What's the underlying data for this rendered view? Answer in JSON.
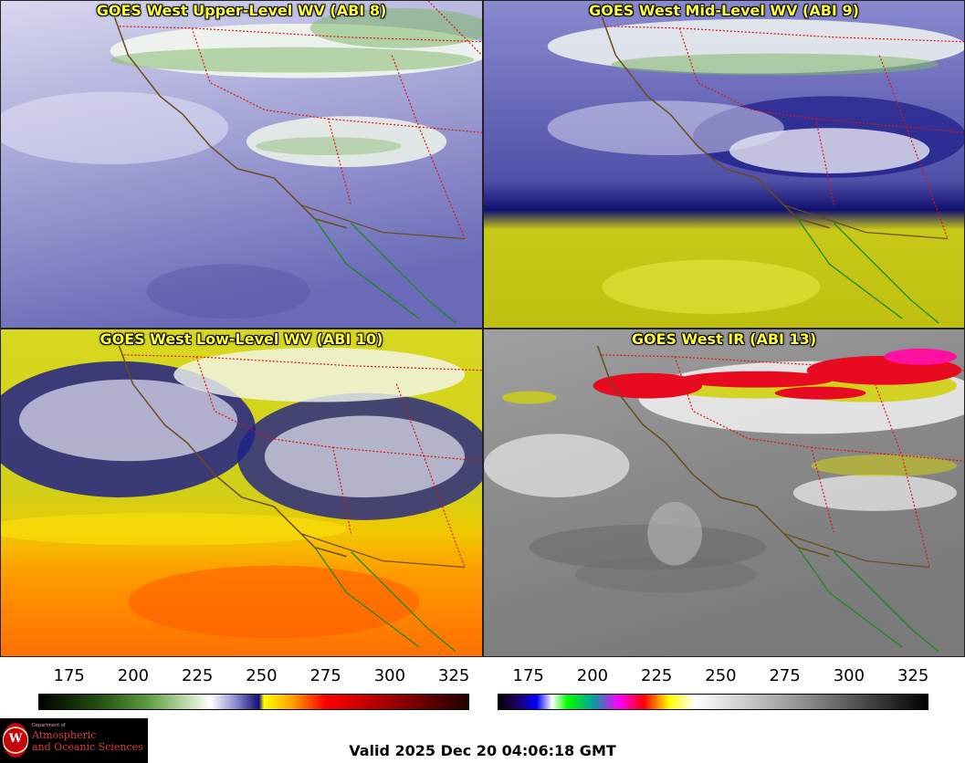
{
  "panels": [
    {
      "id": "upper",
      "title": "GOES West Upper-Level WV (ABI 8)"
    },
    {
      "id": "mid",
      "title": "GOES West Mid-Level WV (ABI 9)"
    },
    {
      "id": "low",
      "title": "GOES West Low-Level WV (ABI 10)"
    },
    {
      "id": "ir",
      "title": "GOES West IR (ABI 13)"
    }
  ],
  "colorbars": {
    "wv": {
      "ticks": [
        "175",
        "200",
        "225",
        "250",
        "275",
        "300",
        "325"
      ],
      "range": [
        163,
        331
      ],
      "stops": [
        {
          "value": 163,
          "color": "#000000"
        },
        {
          "value": 185,
          "color": "#1f4a10"
        },
        {
          "value": 205,
          "color": "#5a9a3a"
        },
        {
          "value": 222,
          "color": "#c8e0b8"
        },
        {
          "value": 230,
          "color": "#ffffff"
        },
        {
          "value": 240,
          "color": "#8a8ad0"
        },
        {
          "value": 249,
          "color": "#10107a"
        },
        {
          "value": 251,
          "color": "#ffff00"
        },
        {
          "value": 262,
          "color": "#ffa000"
        },
        {
          "value": 275,
          "color": "#ff0000"
        },
        {
          "value": 300,
          "color": "#a00000"
        },
        {
          "value": 331,
          "color": "#200000"
        }
      ]
    },
    "ir": {
      "ticks": [
        "175",
        "200",
        "225",
        "250",
        "275",
        "300",
        "325"
      ],
      "range": [
        163,
        331
      ],
      "stops": [
        {
          "value": 163,
          "color": "#000000"
        },
        {
          "value": 170,
          "color": "#200060"
        },
        {
          "value": 178,
          "color": "#0000ff"
        },
        {
          "value": 184,
          "color": "#ffffff"
        },
        {
          "value": 190,
          "color": "#00ff00"
        },
        {
          "value": 200,
          "color": "#00a0a0"
        },
        {
          "value": 210,
          "color": "#ff00ff"
        },
        {
          "value": 220,
          "color": "#ff0000"
        },
        {
          "value": 230,
          "color": "#ffff00"
        },
        {
          "value": 240,
          "color": "#ffffff"
        },
        {
          "value": 285,
          "color": "#888888"
        },
        {
          "value": 331,
          "color": "#000000"
        }
      ]
    }
  },
  "logo": {
    "dept_line": "Department of",
    "name_line1": "Atmospheric",
    "name_line2": "and Oceanic Sciences",
    "seal_letter": "W"
  },
  "valid_time": "Valid 2025 Dec 20 04:06:18 GMT"
}
